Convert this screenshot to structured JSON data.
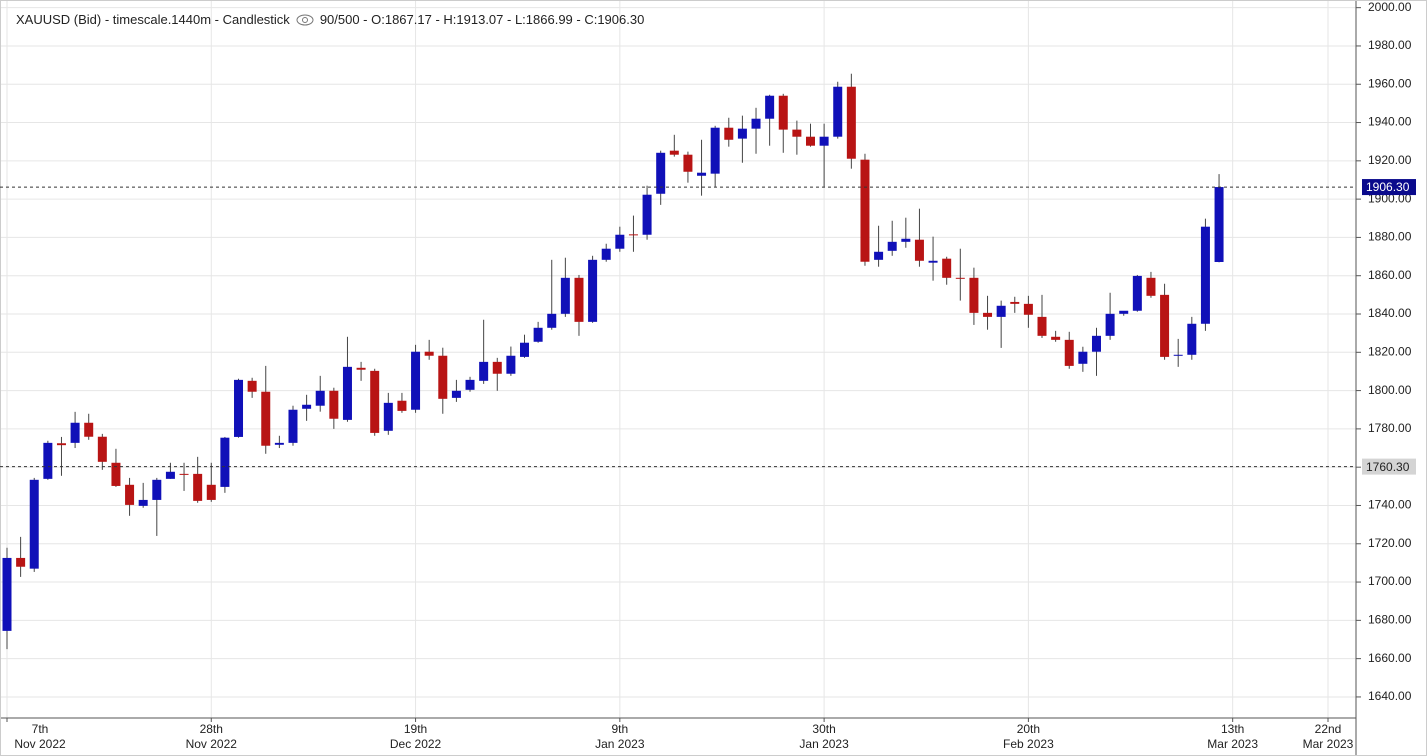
{
  "chart_data": {
    "type": "candlestick",
    "title": "XAUUSD (Bid) - timescale.1440m - Candlestick",
    "subtitle": "90/500 - O:1867.17 - H:1913.07 - L:1866.99 - C:1906.30",
    "categories": [
      "7th\nNov 2022",
      null,
      null,
      null,
      null,
      null,
      null,
      null,
      null,
      null,
      null,
      null,
      null,
      null,
      null,
      "28th\nNov 2022",
      null,
      null,
      null,
      null,
      null,
      null,
      null,
      null,
      null,
      null,
      null,
      null,
      null,
      null,
      "19th\nDec 2022",
      null,
      null,
      null,
      null,
      null,
      null,
      null,
      null,
      null,
      null,
      null,
      null,
      null,
      null,
      "9th\nJan 2023",
      null,
      null,
      null,
      null,
      null,
      null,
      null,
      null,
      null,
      null,
      null,
      null,
      null,
      null,
      "30th\nJan 2023",
      null,
      null,
      null,
      null,
      null,
      null,
      null,
      null,
      null,
      null,
      null,
      null,
      null,
      null,
      "20th\nFeb 2023",
      null,
      null,
      null,
      null,
      null,
      null,
      null,
      null,
      null,
      null,
      null,
      null,
      null,
      null,
      "13th\nMar 2023",
      null,
      null,
      null,
      null,
      null,
      null,
      "22nd\nMar 2023"
    ],
    "series": [
      {
        "up_color": "#1010b8",
        "down_color": "#b81414",
        "open": [
          1674.5,
          1712.6,
          1707,
          1753.9,
          1772.5,
          1772.7,
          1783.2,
          1775.9,
          1762.3,
          1750.8,
          1739.8,
          1742.9,
          1753.9,
          1756.5,
          1756.5,
          1750.8,
          1749.7,
          1775.8,
          1805.1,
          1799.4,
          1771.7,
          1772.7,
          1790.5,
          1792.1,
          1799.9,
          1784.7,
          1811.9,
          1810.3,
          1779,
          1794.7,
          1790,
          1820.3,
          1818.2,
          1796.2,
          1800.4,
          1805.1,
          1815,
          1808.8,
          1817.6,
          1825.5,
          1832.8,
          1840.1,
          1858.9,
          1835.9,
          1868.3,
          1874.1,
          1881.6,
          1881.4,
          1902.8,
          1925.3,
          1923.2,
          1912.2,
          1913.3,
          1937.3,
          1931.6,
          1936.8,
          1942,
          1954,
          1936.3,
          1932.6,
          1927.9,
          1932.6,
          1958.7,
          1920.6,
          1868.3,
          1873,
          1877.7,
          1878.8,
          1866.8,
          1868.9,
          1858.9,
          1858.9,
          1840.6,
          1838.5,
          1846.3,
          1845.3,
          1838.5,
          1828.1,
          1826.5,
          1814,
          1820.3,
          1828.6,
          1840.1,
          1841.7,
          1858.9,
          1850,
          1818.2,
          1818.7,
          1834.9,
          1867.17,
          null,
          null,
          null,
          null,
          null,
          null,
          null,
          null
        ],
        "high": [
          1717.9,
          1723.6,
          1754.4,
          1773.8,
          1775.8,
          1788.9,
          1787.9,
          1777.4,
          1769.6,
          1754.4,
          1751.8,
          1754.4,
          1762.3,
          1762.3,
          1765.4,
          1762.3,
          1775.8,
          1806.2,
          1806.7,
          1812.9,
          1776.4,
          1792.1,
          1797.8,
          1807.7,
          1801.5,
          1828.1,
          1815,
          1811.4,
          1798.8,
          1798.8,
          1823.9,
          1826.5,
          1822.4,
          1805.6,
          1807.2,
          1837,
          1817.1,
          1823,
          1829.2,
          1835.9,
          1868.3,
          1869.4,
          1860.4,
          1870.4,
          1876.7,
          1885.6,
          1891.4,
          1907,
          1925.3,
          1933.6,
          1924.8,
          1931,
          1938.3,
          1942.5,
          1943.6,
          1947.7,
          1954.5,
          1955,
          1941,
          1939.4,
          1939.4,
          1961.3,
          1965.5,
          1923.7,
          1886.1,
          1888.7,
          1890.3,
          1895,
          1880.4,
          1869.9,
          1874.1,
          1864.2,
          1849.5,
          1847,
          1849,
          1849.5,
          1850,
          1831.2,
          1830.7,
          1822.9,
          1832.8,
          1851.1,
          1841.2,
          1860.4,
          1862,
          1855.8,
          1827,
          1838.5,
          1889.8,
          1913.07,
          null,
          null,
          null,
          null,
          null,
          null,
          null,
          null
        ],
        "low": [
          1665,
          1702.7,
          1705.3,
          1753.4,
          1755.5,
          1770,
          1774.3,
          1758.6,
          1749.7,
          1734.6,
          1738.8,
          1724.1,
          1753.9,
          1747.6,
          1741.4,
          1741.9,
          1746.6,
          1775.4,
          1796.2,
          1767,
          1770,
          1771.2,
          1784.2,
          1789,
          1780,
          1783.7,
          1805.1,
          1776.4,
          1776.9,
          1788.4,
          1788.4,
          1816.1,
          1787.9,
          1794.1,
          1799.4,
          1803.5,
          1799.9,
          1807.7,
          1817.1,
          1825,
          1831.8,
          1838.5,
          1828.6,
          1835.4,
          1867.3,
          1872.5,
          1872.5,
          1878.8,
          1897,
          1922.2,
          1908.6,
          1901.8,
          1906.5,
          1927.4,
          1919,
          1923.7,
          1927.9,
          1924.2,
          1923.2,
          1927.4,
          1906.5,
          1931.6,
          1915.9,
          1865.2,
          1864.7,
          1870.4,
          1874.6,
          1864.7,
          1857.4,
          1855.3,
          1847,
          1834.3,
          1831.8,
          1822.3,
          1840.6,
          1832.8,
          1827.5,
          1825.5,
          1811.4,
          1809.8,
          1807.7,
          1826.5,
          1839.1,
          1841.2,
          1848.5,
          1816.1,
          1812.4,
          1816.1,
          1831.2,
          1866.99,
          null,
          null,
          null,
          null,
          null,
          null,
          null,
          null
        ],
        "close": [
          1712.6,
          1708,
          1753.4,
          1772.7,
          1771.5,
          1783.2,
          1775.9,
          1762.8,
          1750.2,
          1740.3,
          1742.9,
          1753.4,
          1757.6,
          1756,
          1742.4,
          1742.9,
          1775.4,
          1805.6,
          1799.4,
          1771.2,
          1772.7,
          1790,
          1792.6,
          1799.9,
          1785.3,
          1812.4,
          1810.9,
          1777.9,
          1793.6,
          1789.4,
          1820.3,
          1818.2,
          1795.7,
          1799.9,
          1805.6,
          1815,
          1808.8,
          1818.2,
          1825,
          1832.8,
          1840.1,
          1858.9,
          1835.9,
          1868.3,
          1874.1,
          1881.4,
          1881.2,
          1902.3,
          1924.2,
          1923.2,
          1914.3,
          1913.8,
          1937.3,
          1931,
          1936.8,
          1942,
          1954,
          1936.3,
          1932.6,
          1927.9,
          1932.6,
          1958.7,
          1921.1,
          1867.3,
          1872.5,
          1877.7,
          1879.3,
          1867.8,
          1867.8,
          1858.9,
          1858.7,
          1840.6,
          1838.5,
          1844.3,
          1845.3,
          1839.6,
          1828.6,
          1826.5,
          1812.9,
          1820.3,
          1828.6,
          1840.1,
          1841.7,
          1859.9,
          1849.5,
          1817.6,
          1818.7,
          1834.9,
          1885.6,
          1906.3,
          null,
          null,
          null,
          null,
          null,
          null,
          null,
          null
        ]
      }
    ],
    "ylim": [
      1629,
      2004
    ],
    "yticks": [
      {
        "value": 1640,
        "label": "1640.00"
      },
      {
        "value": 1660,
        "label": "1660.00"
      },
      {
        "value": 1680,
        "label": "1680.00"
      },
      {
        "value": 1700,
        "label": "1700.00"
      },
      {
        "value": 1720,
        "label": "1720.00"
      },
      {
        "value": 1740,
        "label": "1740.00"
      },
      {
        "value": 1760,
        "label": "1760.00"
      },
      {
        "value": 1780,
        "label": "1780.00"
      },
      {
        "value": 1800,
        "label": "1800.00"
      },
      {
        "value": 1820,
        "label": "1820.00"
      },
      {
        "value": 1840,
        "label": "1840.00"
      },
      {
        "value": 1860,
        "label": "1860.00"
      },
      {
        "value": 1880,
        "label": "1880.00"
      },
      {
        "value": 1900,
        "label": "1900.00"
      },
      {
        "value": 1920,
        "label": "1920.00"
      },
      {
        "value": 1940,
        "label": "1940.00"
      },
      {
        "value": 1960,
        "label": "1960.00"
      },
      {
        "value": 1980,
        "label": "1980.00"
      },
      {
        "value": 2000,
        "label": "2000.00"
      }
    ],
    "price_lines": [
      {
        "value": 1906.3,
        "label": "1906.30",
        "color": "#0a0a8c"
      },
      {
        "value": 1760.3,
        "label": "1760.30",
        "color": "#d4d4d4"
      }
    ],
    "grid": true
  }
}
